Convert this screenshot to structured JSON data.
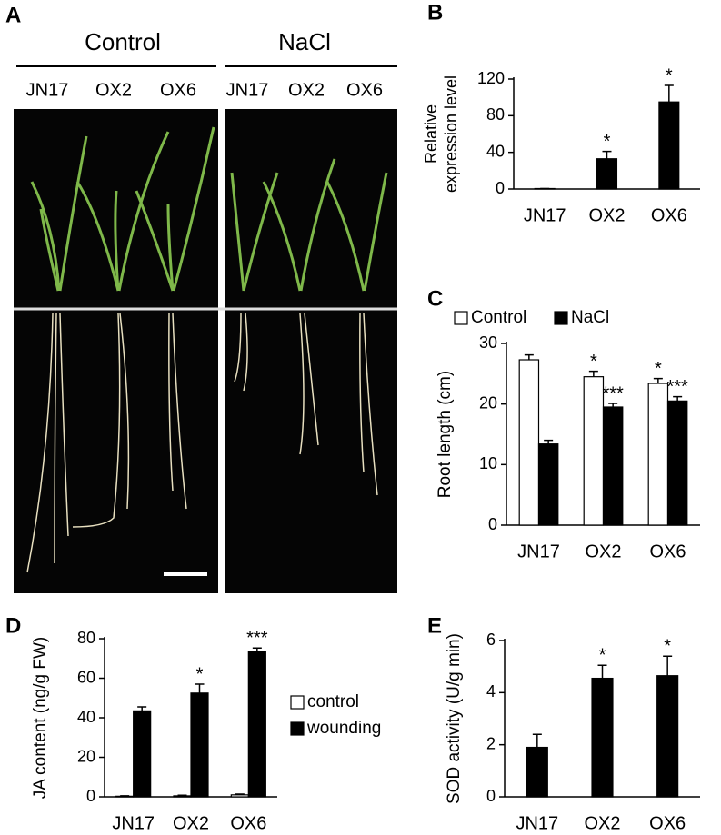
{
  "photo_panel": {
    "label": "A",
    "groups": [
      {
        "name": "Control",
        "lines": [
          "JN17",
          "OX2",
          "OX6"
        ]
      },
      {
        "name": "NaCl",
        "lines": [
          "JN17",
          "OX2",
          "OX6"
        ]
      }
    ]
  },
  "chart_data": [
    {
      "type": "bar",
      "panel_label": "B",
      "ylabel": [
        "Relative",
        "expression level"
      ],
      "categories": [
        "JN17",
        "OX2",
        "OX6"
      ],
      "series": [
        {
          "color": "#000000",
          "values": [
            0.5,
            33,
            95
          ],
          "errors": [
            0,
            8,
            18
          ],
          "annotations": [
            null,
            "*",
            "*"
          ]
        }
      ],
      "ylim": [
        0,
        120
      ],
      "yticks": [
        0,
        40,
        80,
        120
      ]
    },
    {
      "type": "bar",
      "panel_label": "C",
      "ylabel": [
        "Root length (cm)"
      ],
      "legend": "top",
      "categories": [
        "JN17",
        "OX2",
        "OX6"
      ],
      "series": [
        {
          "name": "Control",
          "color": "#ffffff",
          "values": [
            27.3,
            24.5,
            23.4
          ],
          "errors": [
            0.8,
            0.9,
            0.8
          ],
          "annotations": [
            null,
            "*",
            "*"
          ]
        },
        {
          "name": "NaCl",
          "color": "#000000",
          "values": [
            13.4,
            19.5,
            20.5
          ],
          "errors": [
            0.6,
            0.6,
            0.7
          ],
          "annotations": [
            null,
            "***",
            "***"
          ]
        }
      ],
      "ylim": [
        0,
        30
      ],
      "yticks": [
        0,
        10,
        20,
        30
      ]
    },
    {
      "type": "bar",
      "panel_label": "D",
      "ylabel": [
        "JA content (ng/g FW)"
      ],
      "legend": "right",
      "categories": [
        "JN17",
        "OX2",
        "OX6"
      ],
      "series": [
        {
          "name": "control",
          "color": "#ffffff",
          "values": [
            0.3,
            0.5,
            1.0
          ],
          "errors": [
            0.2,
            0.3,
            0.4
          ],
          "annotations": [
            null,
            null,
            null
          ]
        },
        {
          "name": "wounding",
          "color": "#000000",
          "values": [
            43.5,
            52.5,
            73.5
          ],
          "errors": [
            2,
            4.5,
            1.8
          ],
          "annotations": [
            null,
            "*",
            "***"
          ]
        }
      ],
      "ylim": [
        0,
        80
      ],
      "yticks": [
        0,
        20,
        40,
        60,
        80
      ]
    },
    {
      "type": "bar",
      "panel_label": "E",
      "ylabel": [
        "SOD activity (U/g min)"
      ],
      "categories": [
        "JN17",
        "OX2",
        "OX6"
      ],
      "series": [
        {
          "color": "#000000",
          "values": [
            1.9,
            4.55,
            4.65
          ],
          "errors": [
            0.5,
            0.5,
            0.75
          ],
          "annotations": [
            null,
            "*",
            "*"
          ]
        }
      ],
      "ylim": [
        0,
        6
      ],
      "yticks": [
        0,
        2,
        4,
        6
      ]
    }
  ]
}
